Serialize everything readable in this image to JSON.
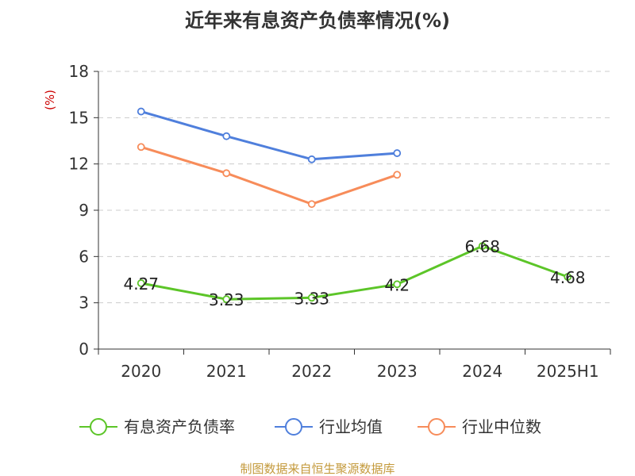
{
  "chart_data": {
    "type": "line",
    "title": "近年来有息资产负债率情况(%)",
    "unit_label": "(%)",
    "categories": [
      "2020",
      "2021",
      "2022",
      "2023",
      "2024",
      "2025H1"
    ],
    "ylim": [
      0,
      18
    ],
    "yticks": [
      "0",
      "3",
      "6",
      "9",
      "12",
      "15",
      "18"
    ],
    "grid": true,
    "legend_position": "bottom",
    "series": [
      {
        "name": "有息资产负债率",
        "color": "#5cc528",
        "values": [
          4.27,
          3.23,
          3.33,
          4.2,
          6.68,
          4.68
        ],
        "labels": [
          "4.27",
          "3.23",
          "3.33",
          "4.2",
          "6.68",
          "4.68"
        ]
      },
      {
        "name": "行业均值",
        "color": "#4f7fdc",
        "values": [
          15.4,
          13.8,
          12.3,
          12.7,
          null,
          null
        ]
      },
      {
        "name": "行业中位数",
        "color": "#f78c5a",
        "values": [
          13.1,
          11.4,
          9.4,
          11.3,
          null,
          null
        ]
      }
    ]
  },
  "source": "制图数据来自恒生聚源数据库",
  "colors": {
    "unit_label": "#cc0000",
    "source": "#c49a3c",
    "grid": "#cccccc",
    "axis": "#333333"
  }
}
